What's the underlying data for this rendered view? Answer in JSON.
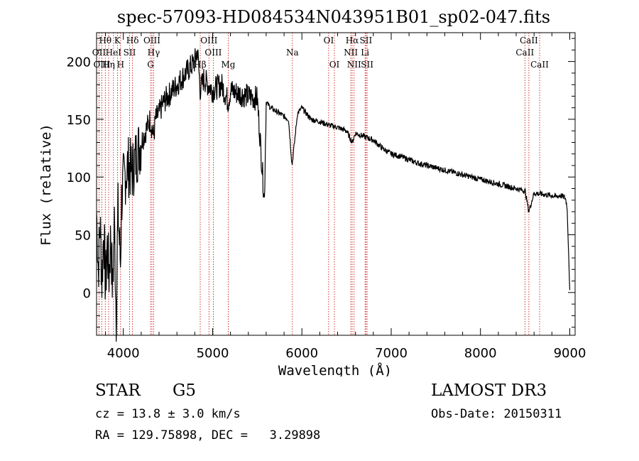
{
  "chart_data": {
    "type": "line",
    "title": "spec-57093-HD084534N043951B01_sp02-047.fits",
    "xlabel": "Wavelength (Å)",
    "ylabel": "Flux (relative)",
    "xlim": [
      3700,
      9060
    ],
    "ylim": [
      -37,
      225
    ],
    "xticks": [
      4000,
      5000,
      6000,
      7000,
      8000,
      9000
    ],
    "yticks": [
      0,
      50,
      100,
      150,
      200
    ],
    "series": [
      {
        "name": "flux",
        "x": [
          3700,
          3720,
          3740,
          3760,
          3780,
          3800,
          3820,
          3840,
          3860,
          3880,
          3900,
          3920,
          3933,
          3940,
          3968,
          3980,
          4000,
          4050,
          4100,
          4150,
          4200,
          4250,
          4300,
          4340,
          4360,
          4400,
          4450,
          4500,
          4550,
          4600,
          4650,
          4700,
          4750,
          4800,
          4830,
          4861,
          4900,
          4950,
          5000,
          5050,
          5100,
          5150,
          5175,
          5200,
          5300,
          5400,
          5500,
          5580,
          5600,
          5650,
          5750,
          5850,
          5890,
          5950,
          6000,
          6100,
          6200,
          6300,
          6400,
          6500,
          6563,
          6600,
          6700,
          6800,
          6900,
          7000,
          7100,
          7200,
          7300,
          7400,
          7500,
          7600,
          7700,
          7800,
          7900,
          8000,
          8100,
          8200,
          8300,
          8400,
          8500,
          8542,
          8600,
          8700,
          8800,
          8850,
          8900,
          8950,
          8970,
          8990,
          9000
        ],
        "y": [
          70,
          20,
          60,
          10,
          55,
          5,
          40,
          15,
          50,
          0,
          60,
          -20,
          45,
          70,
          25,
          80,
          95,
          110,
          105,
          120,
          130,
          140,
          150,
          135,
          150,
          155,
          165,
          170,
          175,
          180,
          185,
          190,
          195,
          200,
          210,
          175,
          185,
          180,
          175,
          178,
          180,
          170,
          165,
          175,
          172,
          170,
          168,
          80,
          165,
          160,
          155,
          150,
          110,
          155,
          160,
          150,
          148,
          145,
          143,
          140,
          130,
          138,
          135,
          132,
          125,
          120,
          118,
          115,
          112,
          110,
          108,
          106,
          104,
          102,
          100,
          98,
          96,
          94,
          92,
          90,
          88,
          70,
          86,
          85,
          84,
          83,
          84,
          82,
          75,
          30,
          0
        ]
      }
    ],
    "lines": [
      {
        "name": "Hθ",
        "wave": 3798,
        "row": 0
      },
      {
        "name": "OII",
        "wave": 3727,
        "row": 1
      },
      {
        "name": "OIII",
        "wave": 3760,
        "row": 2
      },
      {
        "name": "Hη",
        "wave": 3835,
        "row": 2
      },
      {
        "name": "HeI",
        "wave": 3889,
        "row": 1
      },
      {
        "name": "K",
        "wave": 3934,
        "row": 0
      },
      {
        "name": "H",
        "wave": 3969,
        "row": 2
      },
      {
        "name": "SII",
        "wave": 4070,
        "row": 1
      },
      {
        "name": "Hδ",
        "wave": 4102,
        "row": 0
      },
      {
        "name": "OIII",
        "wave": 4320,
        "row": 0
      },
      {
        "name": "Hγ",
        "wave": 4340,
        "row": 1
      },
      {
        "name": "G",
        "wave": 4305,
        "row": 2
      },
      {
        "name": "Hβ",
        "wave": 4861,
        "row": 2
      },
      {
        "name": "OIII",
        "wave": 4959,
        "row": 0
      },
      {
        "name": "OIII",
        "wave": 5007,
        "row": 1
      },
      {
        "name": "Mg",
        "wave": 5175,
        "row": 2
      },
      {
        "name": "Na",
        "wave": 5893,
        "row": 1
      },
      {
        "name": "OI",
        "wave": 6300,
        "row": 0
      },
      {
        "name": "OI",
        "wave": 6364,
        "row": 2
      },
      {
        "name": "Hα",
        "wave": 6563,
        "row": 0
      },
      {
        "name": "NII",
        "wave": 6548,
        "row": 1
      },
      {
        "name": "NII",
        "wave": 6584,
        "row": 2
      },
      {
        "name": "SII",
        "wave": 6717,
        "row": 0
      },
      {
        "name": "Li",
        "wave": 6708,
        "row": 1
      },
      {
        "name": "SII",
        "wave": 6731,
        "row": 2
      },
      {
        "name": "CaII",
        "wave": 8542,
        "row": 0
      },
      {
        "name": "CaII",
        "wave": 8498,
        "row": 1
      },
      {
        "name": "CaII",
        "wave": 8662,
        "row": 2
      }
    ]
  },
  "info": {
    "class": "STAR",
    "subclass": "G5",
    "survey": "LAMOST DR3",
    "cz": "cz = 13.8 ± 3.0 km/s",
    "obs_date": "Obs-Date: 20150311",
    "radec": "RA = 129.75898, DEC =   3.29898"
  },
  "colors": {
    "line_marker": "#cc0000",
    "spectrum": "#000000"
  }
}
